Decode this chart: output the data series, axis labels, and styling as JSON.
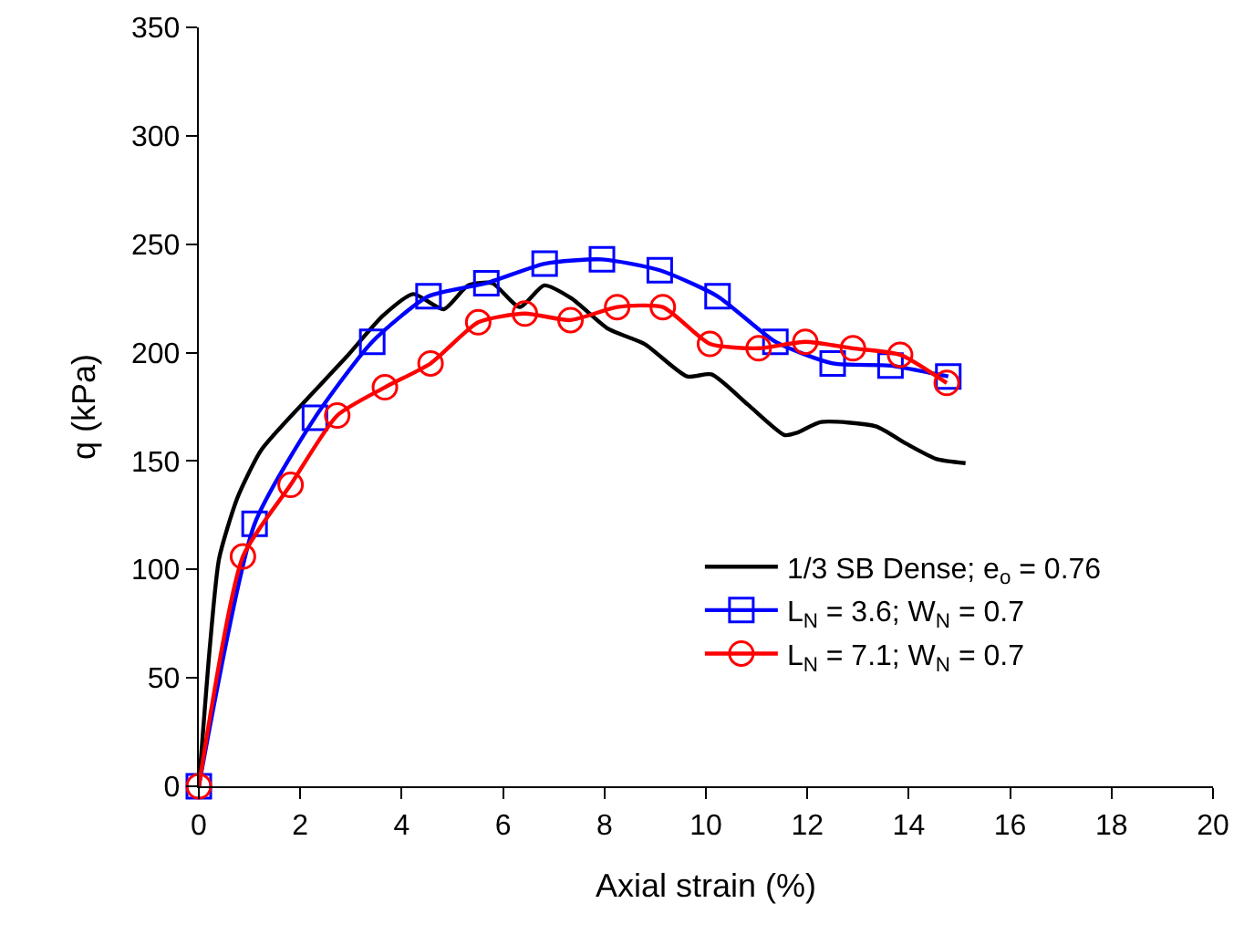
{
  "chart_data": {
    "type": "line",
    "xlabel": "Axial strain (%)",
    "ylabel": "q (kPa)",
    "xlim": [
      0,
      20
    ],
    "xticks": [
      0,
      2,
      4,
      6,
      8,
      10,
      12,
      14,
      16,
      18,
      20
    ],
    "ylim": [
      0,
      350
    ],
    "yticks": [
      0,
      50,
      100,
      150,
      200,
      250,
      300,
      350
    ],
    "grid": false,
    "legend": "right",
    "series": [
      {
        "name": "1/3 SB Dense; e$_{o}$ = 0.76",
        "color": "#000000",
        "marker": "none",
        "x": [
          0,
          0.22,
          0.4,
          0.76,
          1.23,
          2.07,
          2.91,
          3.63,
          4.23,
          4.83,
          5.31,
          5.79,
          6.33,
          6.81,
          7.35,
          8.07,
          8.79,
          9.63,
          10.11,
          10.83,
          11.55,
          11.79,
          12.27,
          13.35,
          13.95,
          14.54,
          15.12
        ],
        "values": [
          0,
          65,
          105,
          133,
          155,
          177,
          198,
          217,
          227,
          220,
          231,
          232,
          221,
          231,
          225,
          211,
          204,
          189,
          190,
          176,
          162,
          163,
          168,
          166,
          158,
          151,
          149
        ]
      },
      {
        "name": "L$_{N}$ = 3.6; W$_{N}$ = 0.7",
        "color": "#0000ff",
        "marker": "square",
        "x": [
          0,
          1.1,
          2.29,
          3.42,
          4.53,
          5.67,
          6.82,
          7.95,
          9.09,
          10.23,
          11.37,
          12.5,
          13.64,
          14.78
        ],
        "values": [
          0,
          121,
          170,
          205,
          226,
          232,
          241,
          243,
          238,
          226,
          205,
          195,
          194,
          189
        ]
      },
      {
        "name": "L$_{N}$ = 7.1; W$_{N}$ = 0.7",
        "color": "#ff0000",
        "marker": "circle",
        "x": [
          0,
          0.87,
          1.81,
          2.73,
          3.67,
          4.57,
          5.51,
          6.43,
          7.33,
          8.25,
          9.15,
          10.08,
          11.04,
          11.96,
          12.9,
          13.83,
          14.75
        ],
        "values": [
          0,
          106,
          139,
          171,
          184,
          195,
          214,
          218,
          215,
          221,
          221,
          204,
          202,
          205,
          202,
          199,
          186
        ]
      }
    ]
  }
}
